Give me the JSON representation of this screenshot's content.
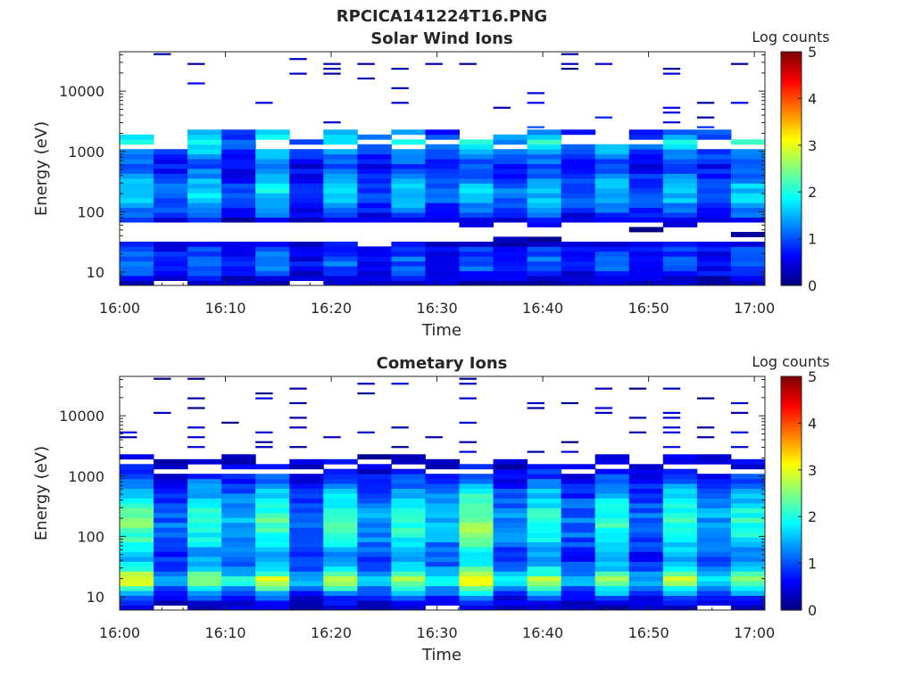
{
  "figure_title": "RPCICA141224T16.PNG",
  "chart_data": [
    {
      "type": "heatmap",
      "title": "Solar Wind Ions",
      "xlabel": "Time",
      "ylabel": "Energy (eV)",
      "x_range": [
        "16:00",
        "17:01"
      ],
      "x_ticks": [
        "16:00",
        "16:10",
        "16:20",
        "16:30",
        "16:40",
        "16:50",
        "17:00"
      ],
      "y_scale": "log",
      "y_range": [
        6,
        45000
      ],
      "y_ticks": [
        "10",
        "100",
        "1000",
        "10000"
      ],
      "colorbar": {
        "label": "Log counts",
        "range": [
          0,
          5
        ],
        "ticks": [
          "0",
          "1",
          "2",
          "3",
          "4",
          "5"
        ],
        "colormap": "jet"
      },
      "profile": {
        "energy_eV": [
          7,
          10,
          15,
          25,
          40,
          60,
          100,
          150,
          250,
          400,
          600,
          1000,
          1500,
          3000,
          8000,
          30000
        ],
        "log_counts": [
          0.3,
          0.8,
          1.0,
          0.7,
          0.1,
          0.3,
          1.0,
          1.3,
          1.4,
          1.0,
          0.8,
          1.2,
          1.7,
          0.5,
          0.3,
          0.2
        ]
      },
      "empty_band_eV": [
        30,
        65
      ]
    },
    {
      "type": "heatmap",
      "title": "Cometary Ions",
      "xlabel": "Time",
      "ylabel": "Energy (eV)",
      "x_range": [
        "16:00",
        "17:01"
      ],
      "x_ticks": [
        "16:00",
        "16:10",
        "16:20",
        "16:30",
        "16:40",
        "16:50",
        "17:00"
      ],
      "y_scale": "log",
      "y_range": [
        6,
        45000
      ],
      "y_ticks": [
        "10",
        "100",
        "1000",
        "10000"
      ],
      "colorbar": {
        "label": "Log counts",
        "range": [
          0,
          5
        ],
        "ticks": [
          "0",
          "1",
          "2",
          "3",
          "4",
          "5"
        ],
        "colormap": "jet"
      },
      "profile": {
        "energy_eV": [
          7,
          10,
          15,
          20,
          30,
          50,
          80,
          120,
          200,
          300,
          500,
          800,
          1500,
          3000,
          8000
        ],
        "log_counts": [
          0.3,
          0.9,
          2.0,
          2.4,
          1.5,
          1.2,
          1.6,
          1.8,
          1.9,
          1.7,
          1.4,
          1.0,
          0.5,
          0.3,
          0.2
        ]
      },
      "empty_band_eV": []
    }
  ]
}
